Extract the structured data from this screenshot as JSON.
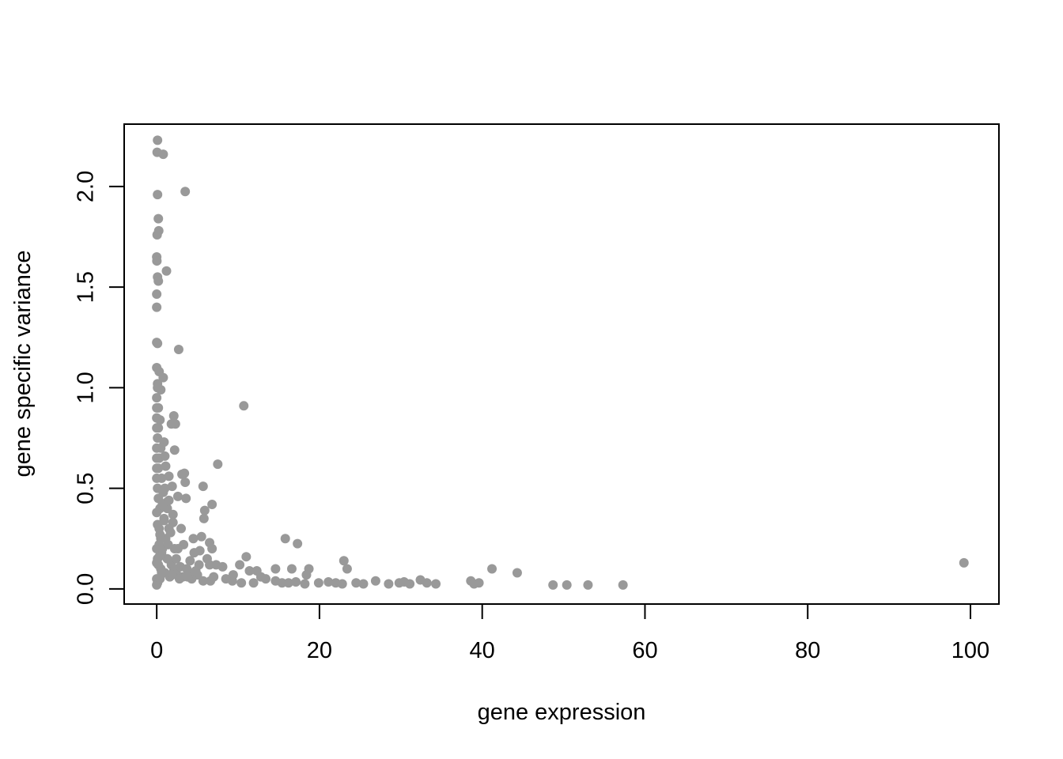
{
  "chart_data": {
    "type": "scatter",
    "title": "",
    "xlabel": "gene expression",
    "ylabel": "gene specific variance",
    "xlim": [
      -4,
      103.5
    ],
    "ylim": [
      -0.075,
      2.31
    ],
    "x_ticks": [
      0,
      20,
      40,
      60,
      80,
      100
    ],
    "y_ticks": [
      0.0,
      0.5,
      1.0,
      1.5,
      2.0
    ],
    "x_tick_labels": [
      "0",
      "20",
      "40",
      "60",
      "80",
      "100"
    ],
    "y_tick_labels": [
      "0.0",
      "0.5",
      "1.0",
      "1.5",
      "2.0"
    ],
    "point_color": "#999999",
    "grid": false,
    "legend": "none",
    "points": [
      [
        0.1,
        2.23
      ],
      [
        0.05,
        2.17
      ],
      [
        0.8,
        2.16
      ],
      [
        0.1,
        1.96
      ],
      [
        3.5,
        1.975
      ],
      [
        0.2,
        1.84
      ],
      [
        0.25,
        1.78
      ],
      [
        0.05,
        1.76
      ],
      [
        0.0,
        1.65
      ],
      [
        0.02,
        1.63
      ],
      [
        1.2,
        1.58
      ],
      [
        0.1,
        1.55
      ],
      [
        0.2,
        1.53
      ],
      [
        0.0,
        1.465
      ],
      [
        0.0,
        1.4
      ],
      [
        0.0,
        1.225
      ],
      [
        0.1,
        1.22
      ],
      [
        2.7,
        1.19
      ],
      [
        0.3,
        1.08
      ],
      [
        0.8,
        1.05
      ],
      [
        0.1,
        1.02
      ],
      [
        0.5,
        0.99
      ],
      [
        0.0,
        0.95
      ],
      [
        0.2,
        0.9
      ],
      [
        10.7,
        0.91
      ],
      [
        2.1,
        0.86
      ],
      [
        2.3,
        0.82
      ],
      [
        1.8,
        0.82
      ],
      [
        0.4,
        0.84
      ],
      [
        0.0,
        0.8
      ],
      [
        0.9,
        0.73
      ],
      [
        2.2,
        0.69
      ],
      [
        0.5,
        0.7
      ],
      [
        1.0,
        0.66
      ],
      [
        0.3,
        0.65
      ],
      [
        7.5,
        0.62
      ],
      [
        1.1,
        0.61
      ],
      [
        0.0,
        0.6
      ],
      [
        3.1,
        0.57
      ],
      [
        3.4,
        0.575
      ],
      [
        1.5,
        0.56
      ],
      [
        3.5,
        0.53
      ],
      [
        1.9,
        0.51
      ],
      [
        5.7,
        0.51
      ],
      [
        2.6,
        0.46
      ],
      [
        3.6,
        0.45
      ],
      [
        1.2,
        0.43
      ],
      [
        6.8,
        0.42
      ],
      [
        5.9,
        0.39
      ],
      [
        0.4,
        0.4
      ],
      [
        5.8,
        0.35
      ],
      [
        2.0,
        0.37
      ],
      [
        0.9,
        0.34
      ],
      [
        3.0,
        0.3
      ],
      [
        1.5,
        0.3
      ],
      [
        15.8,
        0.25
      ],
      [
        4.5,
        0.25
      ],
      [
        5.5,
        0.26
      ],
      [
        17.3,
        0.225
      ],
      [
        6.5,
        0.23
      ],
      [
        3.3,
        0.22
      ],
      [
        6.8,
        0.2
      ],
      [
        2.2,
        0.2
      ],
      [
        5.3,
        0.19
      ],
      [
        4.6,
        0.18
      ],
      [
        11.0,
        0.16
      ],
      [
        6.2,
        0.15
      ],
      [
        23.0,
        0.14
      ],
      [
        7.3,
        0.12
      ],
      [
        10.2,
        0.12
      ],
      [
        6.5,
        0.12
      ],
      [
        8.1,
        0.11
      ],
      [
        41.2,
        0.1
      ],
      [
        14.6,
        0.1
      ],
      [
        16.6,
        0.1
      ],
      [
        18.7,
        0.1
      ],
      [
        23.4,
        0.1
      ],
      [
        11.4,
        0.09
      ],
      [
        12.3,
        0.09
      ],
      [
        44.3,
        0.08
      ],
      [
        9.4,
        0.07
      ],
      [
        4.0,
        0.08
      ],
      [
        5.0,
        0.07
      ],
      [
        12.8,
        0.06
      ],
      [
        18.4,
        0.07
      ],
      [
        99.2,
        0.13
      ],
      [
        3.2,
        0.06
      ],
      [
        2.5,
        0.07
      ],
      [
        1.0,
        0.08
      ],
      [
        0.5,
        0.1
      ],
      [
        0.2,
        0.12
      ],
      [
        0.1,
        0.15
      ],
      [
        0.0,
        0.2
      ],
      [
        0.3,
        0.22
      ],
      [
        0.6,
        0.18
      ],
      [
        1.3,
        0.15
      ],
      [
        1.8,
        0.12
      ],
      [
        2.1,
        0.09
      ],
      [
        0.0,
        0.05
      ],
      [
        0.1,
        0.03
      ],
      [
        0.0,
        0.02
      ],
      [
        0.4,
        0.05
      ],
      [
        1.6,
        0.06
      ],
      [
        2.8,
        0.05
      ],
      [
        4.3,
        0.05
      ],
      [
        5.7,
        0.04
      ],
      [
        6.6,
        0.04
      ],
      [
        9.3,
        0.04
      ],
      [
        10.4,
        0.03
      ],
      [
        11.9,
        0.03
      ],
      [
        13.4,
        0.05
      ],
      [
        14.6,
        0.04
      ],
      [
        15.4,
        0.03
      ],
      [
        16.2,
        0.03
      ],
      [
        17.1,
        0.035
      ],
      [
        18.2,
        0.025
      ],
      [
        19.9,
        0.03
      ],
      [
        21.1,
        0.035
      ],
      [
        22.0,
        0.03
      ],
      [
        22.8,
        0.025
      ],
      [
        24.5,
        0.03
      ],
      [
        25.4,
        0.025
      ],
      [
        26.9,
        0.04
      ],
      [
        28.5,
        0.025
      ],
      [
        29.8,
        0.03
      ],
      [
        30.4,
        0.035
      ],
      [
        31.1,
        0.025
      ],
      [
        32.4,
        0.045
      ],
      [
        33.2,
        0.03
      ],
      [
        34.3,
        0.025
      ],
      [
        38.6,
        0.04
      ],
      [
        39.0,
        0.025
      ],
      [
        39.6,
        0.03
      ],
      [
        48.7,
        0.02
      ],
      [
        50.4,
        0.02
      ],
      [
        53.0,
        0.02
      ],
      [
        57.3,
        0.02
      ],
      [
        0.0,
        0.55
      ],
      [
        0.1,
        0.5
      ],
      [
        0.2,
        0.45
      ],
      [
        0.3,
        0.3
      ],
      [
        0.5,
        0.25
      ],
      [
        0.7,
        0.2
      ],
      [
        0.9,
        0.35
      ],
      [
        1.1,
        0.25
      ],
      [
        1.4,
        0.22
      ],
      [
        1.7,
        0.28
      ],
      [
        2.4,
        0.15
      ],
      [
        2.9,
        0.11
      ],
      [
        3.7,
        0.1
      ],
      [
        4.8,
        0.09
      ],
      [
        5.2,
        0.12
      ],
      [
        7.0,
        0.06
      ],
      [
        8.5,
        0.05
      ],
      [
        0.0,
        0.7
      ],
      [
        0.1,
        0.75
      ],
      [
        0.0,
        0.85
      ],
      [
        0.2,
        0.6
      ],
      [
        0.6,
        0.55
      ],
      [
        0.8,
        0.48
      ],
      [
        0.0,
        0.38
      ],
      [
        0.1,
        0.32
      ],
      [
        0.4,
        0.27
      ],
      [
        0.0,
        1.1
      ],
      [
        0.1,
        1.0
      ],
      [
        0.0,
        0.9
      ],
      [
        0.2,
        0.8
      ],
      [
        0.0,
        0.65
      ],
      [
        0.3,
        0.16
      ],
      [
        0.0,
        0.13
      ],
      [
        0.6,
        0.08
      ],
      [
        1.9,
        0.07
      ],
      [
        3.8,
        0.06
      ],
      [
        4.1,
        0.14
      ],
      [
        2.6,
        0.2
      ],
      [
        1.3,
        0.4
      ],
      [
        0.7,
        0.42
      ],
      [
        1.0,
        0.5
      ],
      [
        1.5,
        0.44
      ],
      [
        2.0,
        0.33
      ]
    ]
  }
}
